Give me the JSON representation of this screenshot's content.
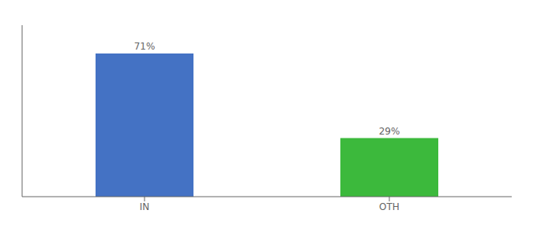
{
  "chart_data": {
    "type": "bar",
    "categories": [
      "IN",
      "OTH"
    ],
    "values": [
      71,
      29
    ],
    "value_labels": [
      "71%",
      "29%"
    ],
    "colors": [
      "#4472c4",
      "#3cb93c"
    ],
    "ylim": [
      0,
      85
    ],
    "yticks": [],
    "tick_labels": "x",
    "data_labels": true,
    "grid": false
  }
}
